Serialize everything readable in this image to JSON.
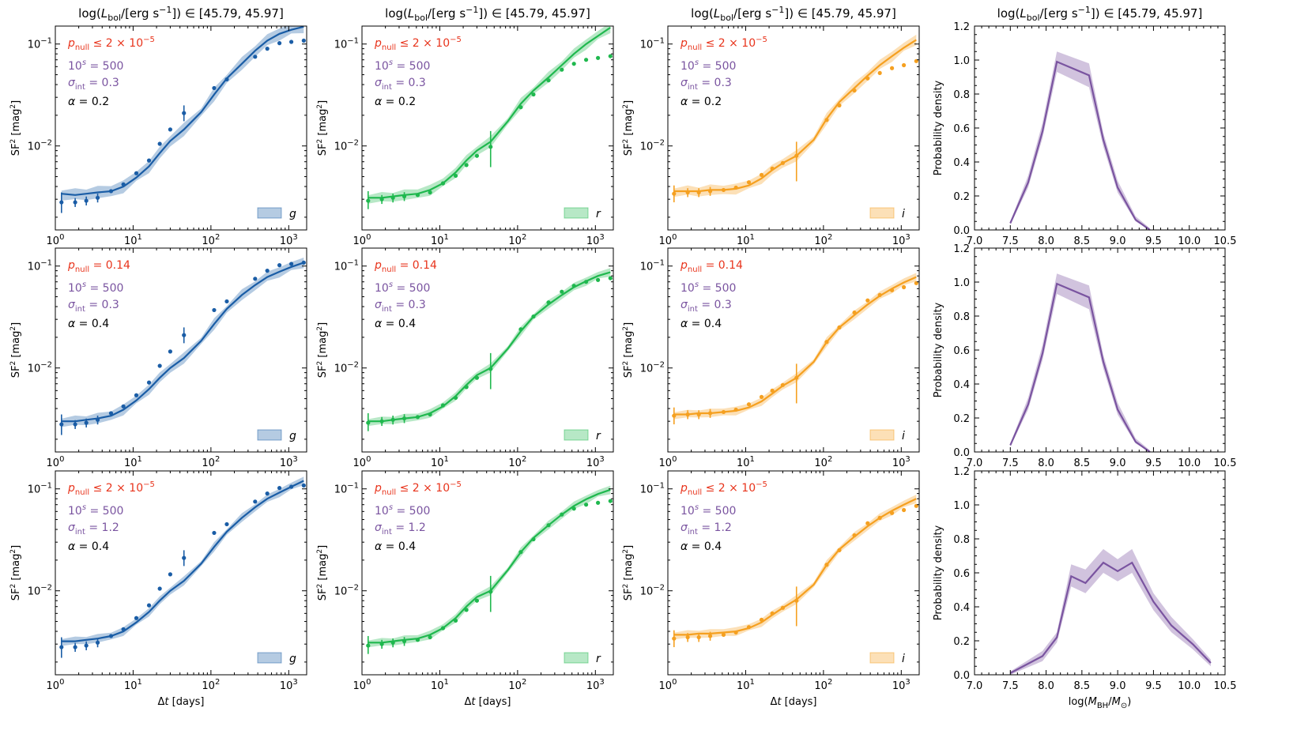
{
  "title_text": "log(Lbol/[erg s−1]) ∈ [45.79, 45.97]",
  "title_parts": {
    "pre": "log(",
    "L": "L",
    "sub": "bol",
    "mid": "/[erg s",
    "sup": "−1",
    "post": "]) ∈ [45.79, 45.97]"
  },
  "colors": {
    "g": "#1a5da6",
    "r": "#1fb84e",
    "i": "#f5a020",
    "bh": "#7a54a0",
    "pnull": "#e8341c",
    "params": "#7a54a0",
    "alpha": "#000000"
  },
  "sf_axes": {
    "xlabel": "Δt [days]",
    "ylabel": "SF2 [mag2]",
    "xlim": [
      1,
      1700
    ],
    "ylim": [
      0.0015,
      0.15
    ],
    "xscale": "log",
    "yscale": "log",
    "xticks": [
      1,
      10,
      100,
      1000
    ],
    "xtick_labels": [
      "10^0",
      "10^1",
      "10^2",
      "10^3"
    ],
    "yticks": [
      0.01,
      0.1
    ],
    "ytick_labels": [
      "10^-2",
      "10^-1"
    ]
  },
  "bh_axes": {
    "xlabel": "log(MBH/M⊙)",
    "ylabel": "Probability density",
    "xlim": [
      7.0,
      10.5
    ],
    "ylim": [
      0.0,
      1.2
    ],
    "xticks": [
      7.0,
      7.5,
      8.0,
      8.5,
      9.0,
      9.5,
      10.0,
      10.5
    ],
    "xtick_labels": [
      "7.0",
      "7.5",
      "8.0",
      "8.5",
      "9.0",
      "9.5",
      "10.0",
      "10.5"
    ],
    "yticks": [
      0.0,
      0.2,
      0.4,
      0.6,
      0.8,
      1.0,
      1.2
    ],
    "ytick_labels": [
      "0.0",
      "0.2",
      "0.4",
      "0.6",
      "0.8",
      "1.0",
      "1.2"
    ]
  },
  "rows": [
    {
      "pnull": "≤ 2 × 10^-5",
      "tens": "500",
      "sigma": "0.3",
      "alpha": "0.2"
    },
    {
      "pnull": "= 0.14",
      "tens": "500",
      "sigma": "0.3",
      "alpha": "0.4"
    },
    {
      "pnull": "≤ 2 × 10^-5",
      "tens": "500",
      "sigma": "1.2",
      "alpha": "0.4"
    }
  ],
  "chart_data": {
    "type": "line",
    "bands": [
      "g",
      "r",
      "i"
    ],
    "dt": [
      1.2,
      1.8,
      2.5,
      3.5,
      5.2,
      7.5,
      11,
      16,
      22,
      30,
      45,
      75,
      110,
      160,
      250,
      370,
      530,
      760,
      1080,
      1560
    ],
    "obs": {
      "g": [
        0.0028,
        0.0028,
        0.0029,
        0.0031,
        0.0036,
        0.0042,
        0.0054,
        0.0072,
        0.0105,
        0.0145,
        0.021,
        0.0,
        0.037,
        0.045,
        0.0,
        0.075,
        0.09,
        0.102,
        0.105,
        0.108
      ],
      "r": [
        0.0029,
        0.003,
        0.0031,
        0.0032,
        0.0033,
        0.0035,
        0.0043,
        0.0051,
        0.0065,
        0.008,
        0.0098,
        0.0,
        0.024,
        0.032,
        0.044,
        0.056,
        0.064,
        0.07,
        0.073,
        0.076
      ],
      "i": [
        0.0034,
        0.0035,
        0.0035,
        0.0036,
        0.0037,
        0.0039,
        0.0044,
        0.0052,
        0.006,
        0.0068,
        0.008,
        0.0,
        0.018,
        0.025,
        0.035,
        0.046,
        0.052,
        0.058,
        0.062,
        0.068
      ]
    },
    "obs_err_at_45": {
      "g": [
        0.0175,
        0.025
      ],
      "r": [
        0.0062,
        0.014
      ],
      "i": [
        0.0045,
        0.011
      ]
    },
    "obs_err_lowdt": {
      "g": [
        0.0022,
        0.0035
      ],
      "r": [
        0.0024,
        0.0036
      ],
      "i": [
        0.0028,
        0.0041
      ]
    },
    "series": [
      {
        "name": "g row1",
        "band": "g",
        "row": 0,
        "model": [
          0.0034,
          0.0033,
          0.0034,
          0.0035,
          0.0036,
          0.004,
          0.0049,
          0.0063,
          0.0085,
          0.0112,
          0.0145,
          0.0215,
          0.032,
          0.046,
          0.064,
          0.086,
          0.108,
          0.126,
          0.138,
          0.148
        ],
        "spread": 0.12
      },
      {
        "name": "r row1",
        "band": "r",
        "row": 0,
        "model": [
          0.0031,
          0.0031,
          0.0032,
          0.0033,
          0.0034,
          0.0037,
          0.0043,
          0.0055,
          0.0072,
          0.009,
          0.011,
          0.0175,
          0.026,
          0.035,
          0.047,
          0.062,
          0.08,
          0.1,
          0.12,
          0.145
        ],
        "spread": 0.1
      },
      {
        "name": "i row1",
        "band": "i",
        "row": 0,
        "model": [
          0.0036,
          0.0036,
          0.0036,
          0.0037,
          0.0037,
          0.0038,
          0.0041,
          0.0048,
          0.0058,
          0.0068,
          0.008,
          0.0115,
          0.0185,
          0.027,
          0.037,
          0.049,
          0.062,
          0.076,
          0.092,
          0.11
        ],
        "spread": 0.1
      },
      {
        "name": "g row2",
        "band": "g",
        "row": 1,
        "model": [
          0.003,
          0.003,
          0.0031,
          0.0032,
          0.0034,
          0.0039,
          0.0048,
          0.0062,
          0.008,
          0.01,
          0.0125,
          0.0185,
          0.027,
          0.038,
          0.052,
          0.065,
          0.078,
          0.088,
          0.098,
          0.108
        ],
        "spread": 0.1
      },
      {
        "name": "r row2",
        "band": "r",
        "row": 1,
        "model": [
          0.003,
          0.003,
          0.0031,
          0.0032,
          0.0033,
          0.0036,
          0.0042,
          0.0053,
          0.0068,
          0.0085,
          0.01,
          0.0155,
          0.023,
          0.032,
          0.042,
          0.052,
          0.062,
          0.071,
          0.08,
          0.087
        ],
        "spread": 0.08
      },
      {
        "name": "i row2",
        "band": "i",
        "row": 1,
        "model": [
          0.0035,
          0.0035,
          0.0036,
          0.0036,
          0.0037,
          0.0038,
          0.0041,
          0.0047,
          0.0056,
          0.0067,
          0.008,
          0.0115,
          0.018,
          0.025,
          0.033,
          0.042,
          0.051,
          0.06,
          0.069,
          0.078
        ],
        "spread": 0.08
      },
      {
        "name": "g row3",
        "band": "g",
        "row": 2,
        "model": [
          0.0032,
          0.0032,
          0.0033,
          0.0034,
          0.0036,
          0.004,
          0.0049,
          0.0062,
          0.008,
          0.01,
          0.0125,
          0.0185,
          0.027,
          0.038,
          0.052,
          0.066,
          0.08,
          0.092,
          0.105,
          0.12
        ],
        "spread": 0.08
      },
      {
        "name": "r row3",
        "band": "r",
        "row": 2,
        "model": [
          0.0031,
          0.0031,
          0.0032,
          0.0033,
          0.0034,
          0.0037,
          0.0043,
          0.0054,
          0.007,
          0.0087,
          0.01,
          0.016,
          0.024,
          0.033,
          0.044,
          0.056,
          0.068,
          0.079,
          0.089,
          0.098
        ],
        "spread": 0.08
      },
      {
        "name": "i row3",
        "band": "i",
        "row": 2,
        "model": [
          0.0037,
          0.0037,
          0.0038,
          0.0038,
          0.0039,
          0.004,
          0.0043,
          0.0049,
          0.0058,
          0.0068,
          0.0082,
          0.0115,
          0.018,
          0.0255,
          0.034,
          0.043,
          0.052,
          0.061,
          0.07,
          0.08
        ],
        "spread": 0.08
      }
    ],
    "bh_pdf": [
      {
        "row": 0,
        "x": [
          7.5,
          7.75,
          7.95,
          8.15,
          8.6,
          8.8,
          9.0,
          9.25,
          9.45
        ],
        "y": [
          0.04,
          0.28,
          0.58,
          0.99,
          0.91,
          0.53,
          0.25,
          0.06,
          0.0
        ],
        "lo": [
          0.03,
          0.25,
          0.54,
          0.93,
          0.84,
          0.49,
          0.22,
          0.05,
          0.0
        ],
        "hi": [
          0.05,
          0.32,
          0.63,
          1.05,
          0.98,
          0.57,
          0.29,
          0.08,
          0.01
        ]
      },
      {
        "row": 1,
        "x": [
          7.5,
          7.75,
          7.95,
          8.15,
          8.6,
          8.8,
          9.0,
          9.25,
          9.45
        ],
        "y": [
          0.04,
          0.28,
          0.58,
          0.99,
          0.91,
          0.53,
          0.25,
          0.06,
          0.0
        ],
        "lo": [
          0.03,
          0.25,
          0.54,
          0.93,
          0.84,
          0.49,
          0.22,
          0.05,
          0.0
        ],
        "hi": [
          0.05,
          0.32,
          0.63,
          1.05,
          0.98,
          0.57,
          0.29,
          0.08,
          0.01
        ]
      },
      {
        "row": 2,
        "x": [
          7.5,
          7.95,
          8.15,
          8.35,
          8.55,
          8.8,
          9.0,
          9.2,
          9.5,
          9.75,
          10.05,
          10.3
        ],
        "y": [
          0.01,
          0.11,
          0.22,
          0.58,
          0.54,
          0.66,
          0.61,
          0.66,
          0.43,
          0.29,
          0.18,
          0.07
        ],
        "lo": [
          0.0,
          0.08,
          0.19,
          0.52,
          0.48,
          0.6,
          0.55,
          0.6,
          0.38,
          0.25,
          0.15,
          0.05
        ],
        "hi": [
          0.02,
          0.14,
          0.25,
          0.65,
          0.62,
          0.74,
          0.68,
          0.74,
          0.48,
          0.34,
          0.21,
          0.09
        ]
      }
    ]
  }
}
